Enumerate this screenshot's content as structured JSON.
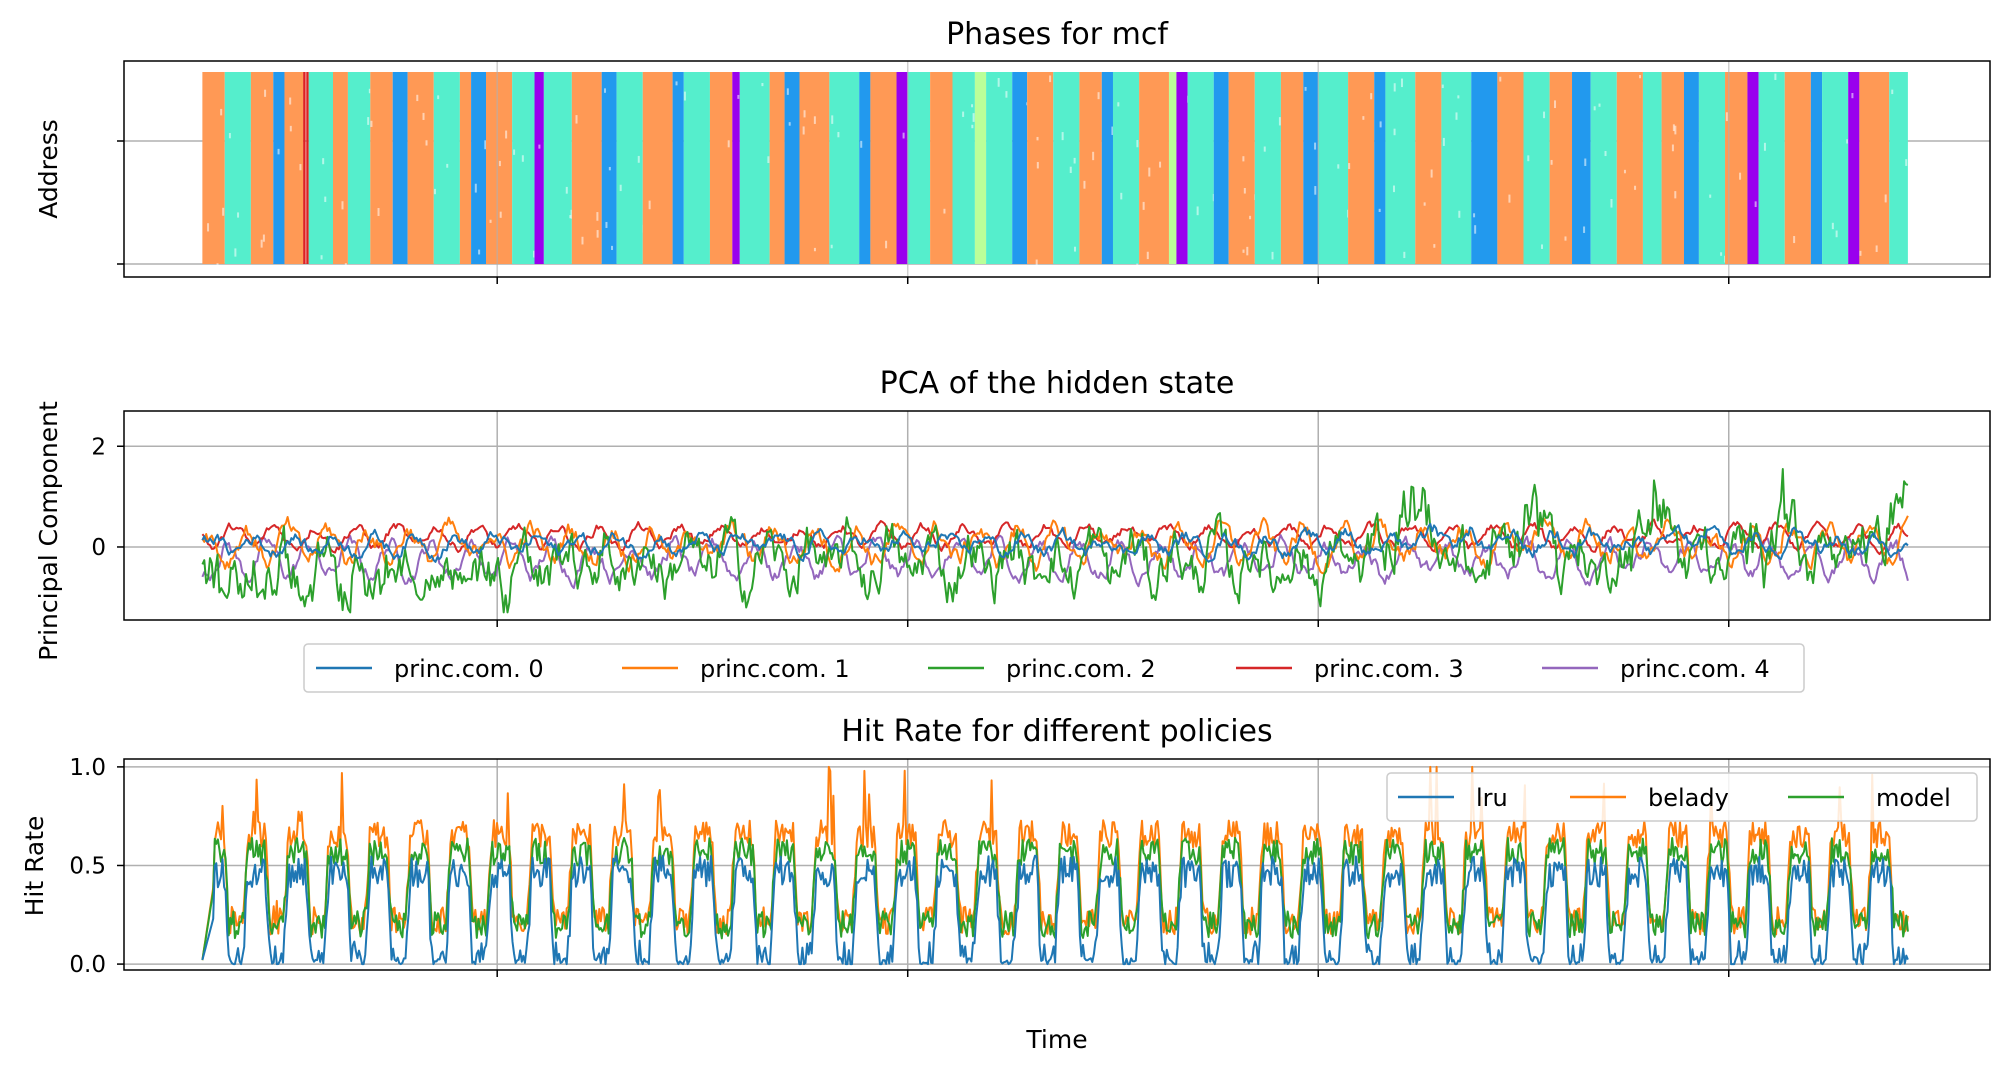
{
  "figure": {
    "xlabel": "Time",
    "colors": {
      "c0": "#1f77b4",
      "c1": "#ff7f0e",
      "c2": "#2ca02c",
      "c3": "#d62728",
      "c4": "#9467bd",
      "axis": "#000000",
      "grid": "#b0b0b0"
    }
  },
  "chart_data": [
    {
      "type": "scatter",
      "title": "Phases for mcf",
      "xlabel": "",
      "ylabel": "Address",
      "xlim": [
        0,
        100
      ],
      "ylim": [
        0,
        1
      ],
      "grid": true,
      "description_free": true,
      "phase_colors": [
        "#ff9955",
        "#55eecc",
        "#2299ee",
        "#9900ee",
        "#bbff99",
        "#dd2222"
      ],
      "phases": [
        [
          4.2,
          5.4,
          0
        ],
        [
          5.4,
          6.8,
          1
        ],
        [
          6.8,
          8.0,
          0
        ],
        [
          8.0,
          8.6,
          2
        ],
        [
          8.6,
          9.6,
          0
        ],
        [
          9.6,
          9.9,
          5
        ],
        [
          9.9,
          11.2,
          1
        ],
        [
          11.2,
          12.0,
          0
        ],
        [
          12.0,
          13.2,
          1
        ],
        [
          13.2,
          14.4,
          0
        ],
        [
          14.4,
          15.2,
          2
        ],
        [
          15.2,
          16.6,
          0
        ],
        [
          16.6,
          18.0,
          1
        ],
        [
          18.0,
          18.6,
          0
        ],
        [
          18.6,
          19.4,
          2
        ],
        [
          19.4,
          20.8,
          0
        ],
        [
          20.8,
          22.0,
          1
        ],
        [
          22.0,
          22.5,
          3
        ],
        [
          22.5,
          24.0,
          1
        ],
        [
          24.0,
          25.6,
          0
        ],
        [
          25.6,
          26.4,
          2
        ],
        [
          26.4,
          27.8,
          1
        ],
        [
          27.8,
          29.4,
          0
        ],
        [
          29.4,
          30.0,
          2
        ],
        [
          30.0,
          31.4,
          1
        ],
        [
          31.4,
          32.6,
          0
        ],
        [
          32.6,
          33.0,
          3
        ],
        [
          33.0,
          34.6,
          1
        ],
        [
          34.6,
          35.4,
          0
        ],
        [
          35.4,
          36.2,
          2
        ],
        [
          36.2,
          37.8,
          0
        ],
        [
          37.8,
          39.4,
          1
        ],
        [
          39.4,
          40.0,
          2
        ],
        [
          40.0,
          41.4,
          0
        ],
        [
          41.4,
          42.0,
          3
        ],
        [
          42.0,
          43.2,
          1
        ],
        [
          43.2,
          44.4,
          0
        ],
        [
          44.4,
          45.6,
          1
        ],
        [
          45.6,
          46.2,
          4
        ],
        [
          46.2,
          47.6,
          1
        ],
        [
          47.6,
          48.4,
          2
        ],
        [
          48.4,
          49.8,
          0
        ],
        [
          49.8,
          51.2,
          1
        ],
        [
          51.2,
          52.4,
          0
        ],
        [
          52.4,
          53.0,
          2
        ],
        [
          53.0,
          54.4,
          1
        ],
        [
          54.4,
          56.0,
          0
        ],
        [
          56.0,
          56.4,
          4
        ],
        [
          56.4,
          57.0,
          3
        ],
        [
          57.0,
          58.4,
          1
        ],
        [
          58.4,
          59.2,
          2
        ],
        [
          59.2,
          60.6,
          0
        ],
        [
          60.6,
          62.0,
          1
        ],
        [
          62.0,
          63.2,
          0
        ],
        [
          63.2,
          64.0,
          2
        ],
        [
          64.0,
          65.6,
          1
        ],
        [
          65.6,
          67.0,
          0
        ],
        [
          67.0,
          67.6,
          2
        ],
        [
          67.6,
          69.2,
          1
        ],
        [
          69.2,
          70.6,
          0
        ],
        [
          70.6,
          72.2,
          1
        ],
        [
          72.2,
          73.6,
          2
        ],
        [
          73.6,
          75.0,
          0
        ],
        [
          75.0,
          76.4,
          1
        ],
        [
          76.4,
          77.6,
          0
        ],
        [
          77.6,
          78.6,
          2
        ],
        [
          78.6,
          80.0,
          1
        ],
        [
          80.0,
          81.4,
          0
        ],
        [
          81.4,
          82.4,
          1
        ],
        [
          82.4,
          83.6,
          0
        ],
        [
          83.6,
          84.4,
          2
        ],
        [
          84.4,
          85.8,
          1
        ],
        [
          85.8,
          87.0,
          0
        ],
        [
          87.0,
          87.6,
          3
        ],
        [
          87.6,
          89.0,
          1
        ],
        [
          89.0,
          90.4,
          0
        ],
        [
          90.4,
          91.0,
          2
        ],
        [
          91.0,
          92.4,
          1
        ],
        [
          92.4,
          93.0,
          3
        ],
        [
          93.0,
          94.6,
          0
        ],
        [
          94.6,
          95.6,
          1
        ]
      ]
    },
    {
      "type": "line",
      "title": "PCA of the hidden state",
      "xlabel": "",
      "ylabel": "Principal Component",
      "xlim": [
        0,
        100
      ],
      "ylim": [
        -1.45,
        2.7
      ],
      "yticks": [
        "2",
        "0"
      ],
      "ytick_values": [
        2,
        0
      ],
      "grid": true,
      "legend": {
        "placement": "below",
        "ncol": 5
      },
      "series": [
        {
          "name": "princ.com. 0",
          "color": "#1f77b4",
          "center": 0.05,
          "amp": 0.2,
          "osc": 0.15,
          "late": 0.15,
          "zorder": 5
        },
        {
          "name": "princ.com. 1",
          "color": "#ff7f0e",
          "center": 0.05,
          "amp": 0.32,
          "osc": 0.3,
          "late": 0.1,
          "zorder": 2
        },
        {
          "name": "princ.com. 2",
          "color": "#2ca02c",
          "center": -0.3,
          "amp": 0.75,
          "osc": 0.35,
          "late": 1.1,
          "zorder": 3
        },
        {
          "name": "princ.com. 3",
          "color": "#d62728",
          "center": 0.2,
          "amp": 0.15,
          "osc": 0.2,
          "late": 0.0,
          "zorder": 1
        },
        {
          "name": "princ.com. 4",
          "color": "#9467bd",
          "center": -0.25,
          "amp": 0.25,
          "osc": 0.3,
          "late": 0.0,
          "zorder": 0
        }
      ]
    },
    {
      "type": "line",
      "title": "Hit Rate for different policies",
      "xlabel": "Time",
      "ylabel": "Hit Rate",
      "xlim": [
        0,
        100
      ],
      "ylim": [
        -0.03,
        1.04
      ],
      "yticks": [
        "1.0",
        "0.5",
        "0.0"
      ],
      "ytick_values": [
        1.0,
        0.5,
        0.0
      ],
      "grid": true,
      "legend": {
        "placement": "top-right",
        "ncol": 3
      },
      "cycles": 42,
      "series": [
        {
          "name": "lru",
          "color": "#1f77b4",
          "high": 0.47,
          "low": 0.04,
          "noise": 0.08
        },
        {
          "name": "belady",
          "color": "#ff7f0e",
          "high": 0.66,
          "low": 0.22,
          "noise": 0.07
        },
        {
          "name": "model",
          "color": "#2ca02c",
          "high": 0.57,
          "low": 0.2,
          "noise": 0.07
        }
      ]
    }
  ]
}
